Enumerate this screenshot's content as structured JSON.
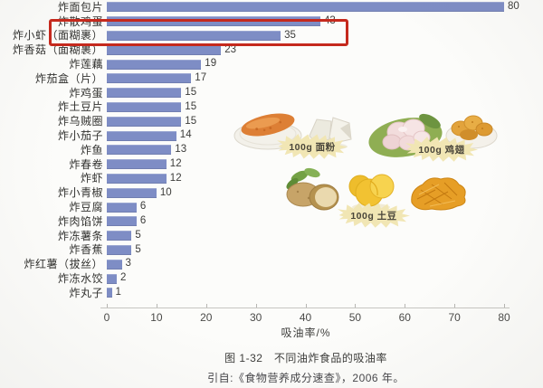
{
  "chart_data": {
    "type": "bar",
    "orientation": "horizontal",
    "title": "图 1-32　不同油炸食品的吸油率",
    "source_note": "引自:《食物营养成分速查》，2006 年。",
    "xlabel": "吸油率/%",
    "xlim": [
      0,
      80
    ],
    "x_ticks": [
      0,
      10,
      20,
      30,
      40,
      50,
      60,
      70,
      80
    ],
    "grid": false,
    "categories": [
      "炸面包片",
      "炸散鸡蛋",
      "炸小虾（面糊裹）",
      "炸香菇（面糊裹）",
      "炸莲藕",
      "炸茄盒（片）",
      "炸鸡蛋",
      "炸土豆片",
      "炸乌贼圈",
      "炸小茄子",
      "炸鱼",
      "炸春卷",
      "炸虾",
      "炸小青椒",
      "炸豆腐",
      "炸肉馅饼",
      "炸冻薯条",
      "炸香蕉",
      "炸红薯（拔丝）",
      "炸冻水饺",
      "炸丸子"
    ],
    "values": [
      80,
      43,
      35,
      23,
      19,
      17,
      15,
      15,
      15,
      14,
      13,
      12,
      12,
      10,
      6,
      6,
      5,
      5,
      3,
      2,
      1
    ],
    "bar_color": "#7E8DC5",
    "highlight": {
      "category": "炸散鸡蛋",
      "value": 43,
      "box_color": "#C5291D"
    }
  },
  "illustrations": {
    "flour": {
      "label": "100g 面粉",
      "items": [
        "fried-bread-on-plate",
        "raw-dough-pieces"
      ]
    },
    "chicken": {
      "label": "100g 鸡翅",
      "items": [
        "raw-chicken-wings-on-leaf",
        "fried-chicken-wings-dish"
      ]
    },
    "potato": {
      "label": "100g 土豆",
      "items": [
        "raw-potatoes",
        "potato-chunks",
        "fried-potato-shreds"
      ]
    }
  },
  "caption": {
    "line1": "图 1-32　不同油炸食品的吸油率",
    "line2": "引自:《食物营养成分速查》，2006 年。"
  }
}
